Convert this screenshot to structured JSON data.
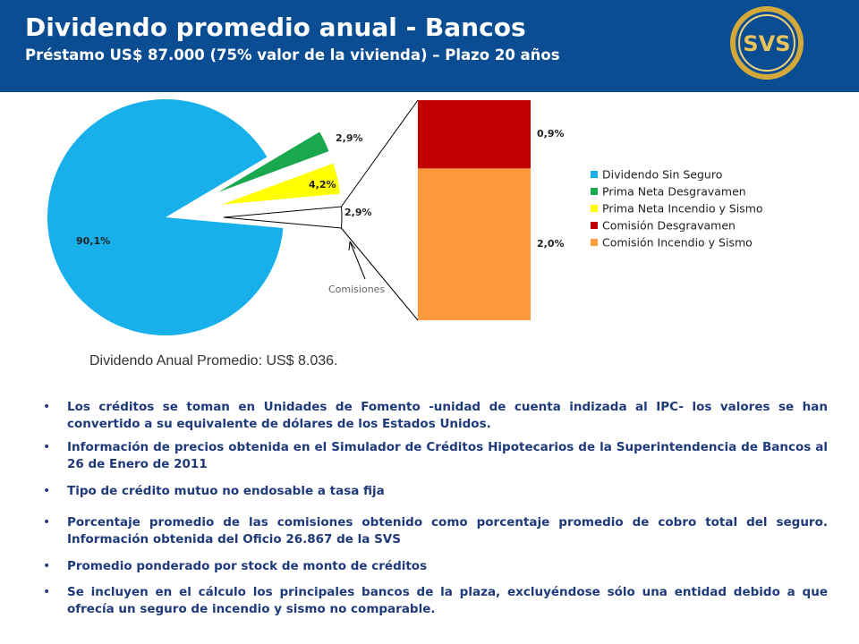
{
  "header": {
    "title": "Dividendo promedio anual - Bancos",
    "subtitle": "Préstamo US$ 87.000 (75% valor de la vivienda) – Plazo 20 años",
    "logo": "SVS"
  },
  "chart_data": {
    "type": "pie",
    "pie": {
      "categories": [
        "Dividendo Sin Seguro",
        "Prima Neta Desgravamen",
        "Prima Neta Incendio y Sismo",
        null
      ],
      "values": [
        90.1,
        2.9,
        4.2,
        2.9
      ],
      "value_labels": [
        "90,1%",
        "2,9%",
        "4,2%",
        "2,9%"
      ],
      "colors": [
        "#17b0eb",
        "#1aa84f",
        "#ffff00",
        "#ffffff"
      ]
    },
    "bar": {
      "categories": [
        "Comisión Incendio y Sismo",
        "Comisión Desgravamen"
      ],
      "values": [
        2.0,
        0.9
      ],
      "value_labels": [
        "2,0%",
        "0,9%"
      ],
      "colors": [
        "#ff9a3c",
        "#c00000"
      ]
    },
    "annotation": "Comisiones",
    "legend": "right"
  },
  "caption": "Dividendo Anual Promedio: US$ 8.036.",
  "bullets": [
    "Los créditos se toman en Unidades de Fomento -unidad de cuenta indizada al IPC- los valores se han convertido a su equivalente de dólares de los Estados Unidos.",
    "Información de precios obtenida en el Simulador de Créditos Hipotecarios de la Superintendencia de Bancos al 26 de Enero de 2011",
    "Tipo de crédito mutuo no endosable a tasa fija",
    "Porcentaje promedio de las comisiones obtenido como porcentaje promedio de cobro total del seguro. Información obtenida del Oficio 26.867 de la SVS",
    "Promedio ponderado por stock de monto de créditos",
    "Se incluyen en el cálculo los principales bancos de la plaza, excluyéndose sólo una entidad debido a que ofrecía un seguro de incendio y sismo no comparable."
  ]
}
